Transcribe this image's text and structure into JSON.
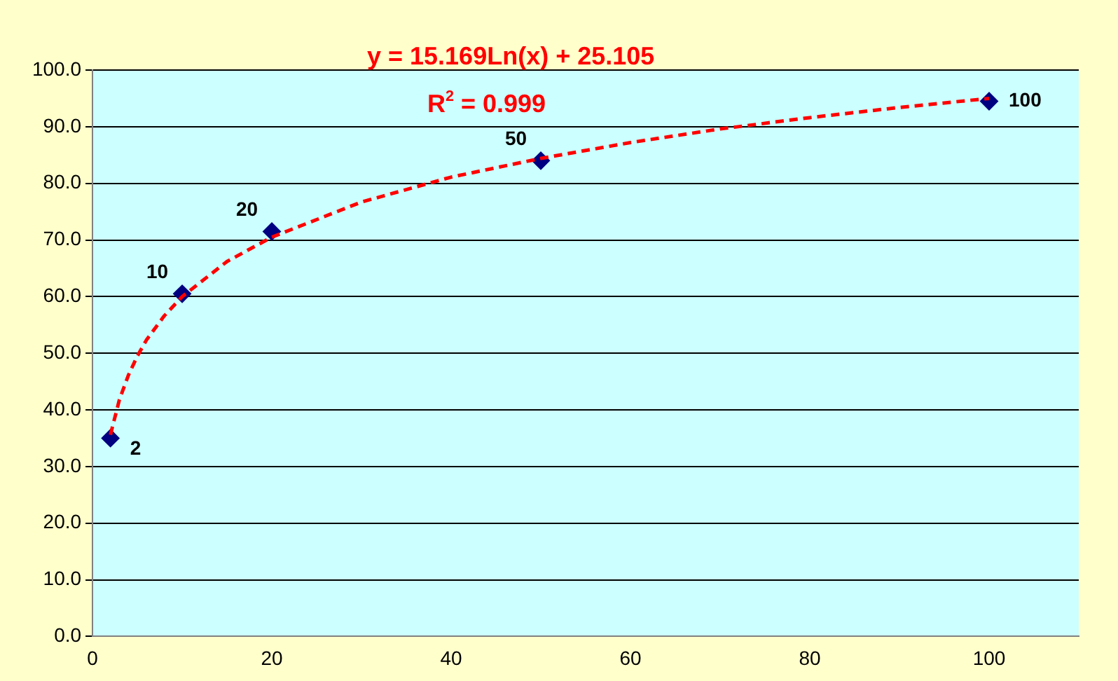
{
  "chart_data": {
    "type": "scatter",
    "annotations": [
      "y = 15.169Ln(x) + 25.105",
      "R$^{2}$ = 0.999",
      {
        "text": "2",
        "x": 2,
        "y": 35.0
      },
      {
        "text": "10",
        "x": 10,
        "y": 60.5
      },
      {
        "text": "20",
        "x": 20,
        "y": 71.5
      },
      {
        "text": "50",
        "x": 50,
        "y": 84.0
      },
      {
        "text": "100",
        "x": 100,
        "y": 94.5
      }
    ],
    "series": [
      {
        "type": "scatter",
        "color": "#000080",
        "x": [
          2,
          10,
          20,
          50,
          100
        ],
        "values": [
          35.0,
          60.5,
          71.5,
          84.0,
          94.5
        ],
        "marker": "diamond"
      },
      {
        "type": "line",
        "color": "#ff0000",
        "line_style": "dashed",
        "marker": "none",
        "x": [
          2,
          3,
          4,
          5,
          6,
          8,
          10,
          15,
          20,
          30,
          40,
          50,
          60,
          70,
          80,
          90,
          100
        ],
        "values": [
          35.6,
          41.8,
          46.1,
          49.5,
          52.3,
          56.6,
          60.0,
          66.2,
          70.5,
          76.7,
          81.1,
          84.4,
          87.2,
          89.6,
          91.6,
          93.4,
          95.0
        ]
      }
    ],
    "xlim": [
      0,
      110
    ],
    "xticks": [
      0,
      20,
      40,
      60,
      80,
      100
    ],
    "ylim": [
      0,
      100
    ],
    "yticks": [
      {
        "value": 0,
        "label": "0.0"
      },
      {
        "value": 10,
        "label": "10.0"
      },
      {
        "value": 20,
        "label": "20.0"
      },
      {
        "value": 30,
        "label": "30.0"
      },
      {
        "value": 40,
        "label": "40.0"
      },
      {
        "value": 50,
        "label": "50.0"
      },
      {
        "value": 60,
        "label": "60.0"
      },
      {
        "value": 70,
        "label": "70.0"
      },
      {
        "value": 80,
        "label": "80.0"
      },
      {
        "value": 90,
        "label": "90.0"
      },
      {
        "value": 100,
        "label": "100.0"
      }
    ],
    "grid": "y",
    "legend": false
  }
}
